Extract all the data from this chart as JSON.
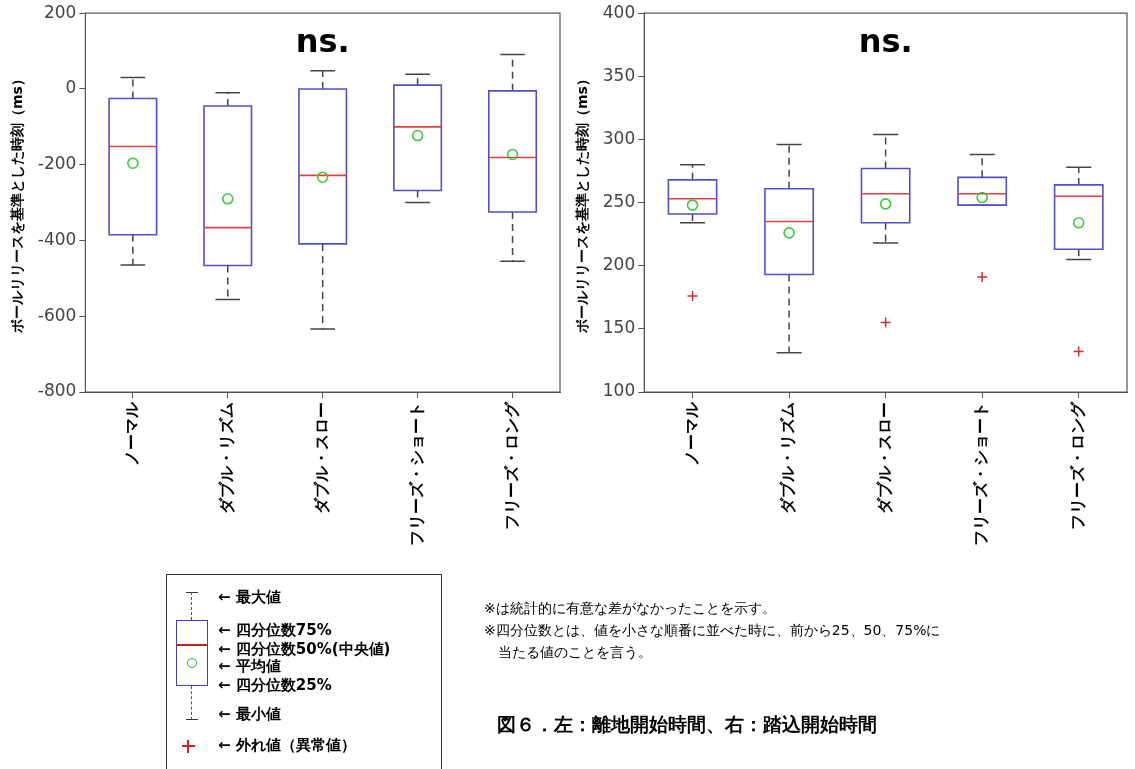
{
  "chart_data": [
    {
      "type": "box",
      "ylabel": "ボールリリースを基準とした時刻（ms）",
      "categories": [
        "ノーマル",
        "ダブル・リズム",
        "ダブル・スロー",
        "フリーズ・ショート",
        "フリーズ・ロング"
      ],
      "color": "#5050c8",
      "ylim": [
        -800,
        200
      ],
      "yticks": [
        -800,
        -600,
        -400,
        -200,
        0,
        200
      ],
      "grid": false,
      "annotations": [
        "ns."
      ],
      "boxes": [
        {
          "low": -465,
          "q1": -385,
          "median": -152,
          "q3": -25,
          "high": 30,
          "mean": -196
        },
        {
          "low": -556,
          "q1": -466,
          "median": -366,
          "q3": -45,
          "high": -10,
          "mean": -290
        },
        {
          "low": -634,
          "q1": -409,
          "median": -228,
          "q3": 0,
          "high": 48,
          "mean": -233
        },
        {
          "low": -300,
          "q1": -268,
          "median": -100,
          "q3": 10,
          "high": 39,
          "mean": -123
        },
        {
          "low": -455,
          "q1": -325,
          "median": -181,
          "q3": -5,
          "high": 91,
          "mean": -173
        }
      ]
    },
    {
      "type": "box",
      "ylabel": "ボールリリースを基準とした時刻（ms）",
      "categories": [
        "ノーマル",
        "ダブル・リズム",
        "ダブル・スロー",
        "フリーズ・ショート",
        "フリーズ・ロング"
      ],
      "color": "#5050c8",
      "ylim": [
        100,
        400
      ],
      "yticks": [
        100,
        150,
        200,
        250,
        300,
        350,
        400
      ],
      "grid": false,
      "annotations": [
        "ns."
      ],
      "boxes": [
        {
          "low": 234,
          "q1": 241,
          "median": 253,
          "q3": 268,
          "high": 280,
          "mean": 248,
          "outliers": [
            176
          ]
        },
        {
          "low": 131,
          "q1": 193,
          "median": 235,
          "q3": 261,
          "high": 296,
          "mean": 226
        },
        {
          "low": 218,
          "q1": 234,
          "median": 257,
          "q3": 277,
          "high": 304,
          "mean": 249,
          "outliers": [
            155
          ]
        },
        {
          "low": 248,
          "q1": 248,
          "median": 257,
          "q3": 270,
          "high": 288,
          "mean": 254,
          "outliers": [
            191
          ]
        },
        {
          "low": 205,
          "q1": 213,
          "median": 255,
          "q3": 264,
          "high": 278,
          "mean": 234,
          "outliers": [
            132
          ]
        }
      ]
    },
    {
      "type": "other",
      "annotations": [
        "← 最大値",
        "← 四分位数75%",
        "← 四分位数50%(中央値)",
        "← 平均値",
        "← 四分位数25%",
        "← 最小値",
        "← 外れ値（異常値）",
        "※は統計的に有意な差がなかったことを示す。",
        "※四分位数とは、値を小さな順番に並べた時に、前から25、50、75%に",
        "当たる値のことを言う。",
        "図６．左：離地開始時間、右：踏込開始時間"
      ]
    }
  ]
}
